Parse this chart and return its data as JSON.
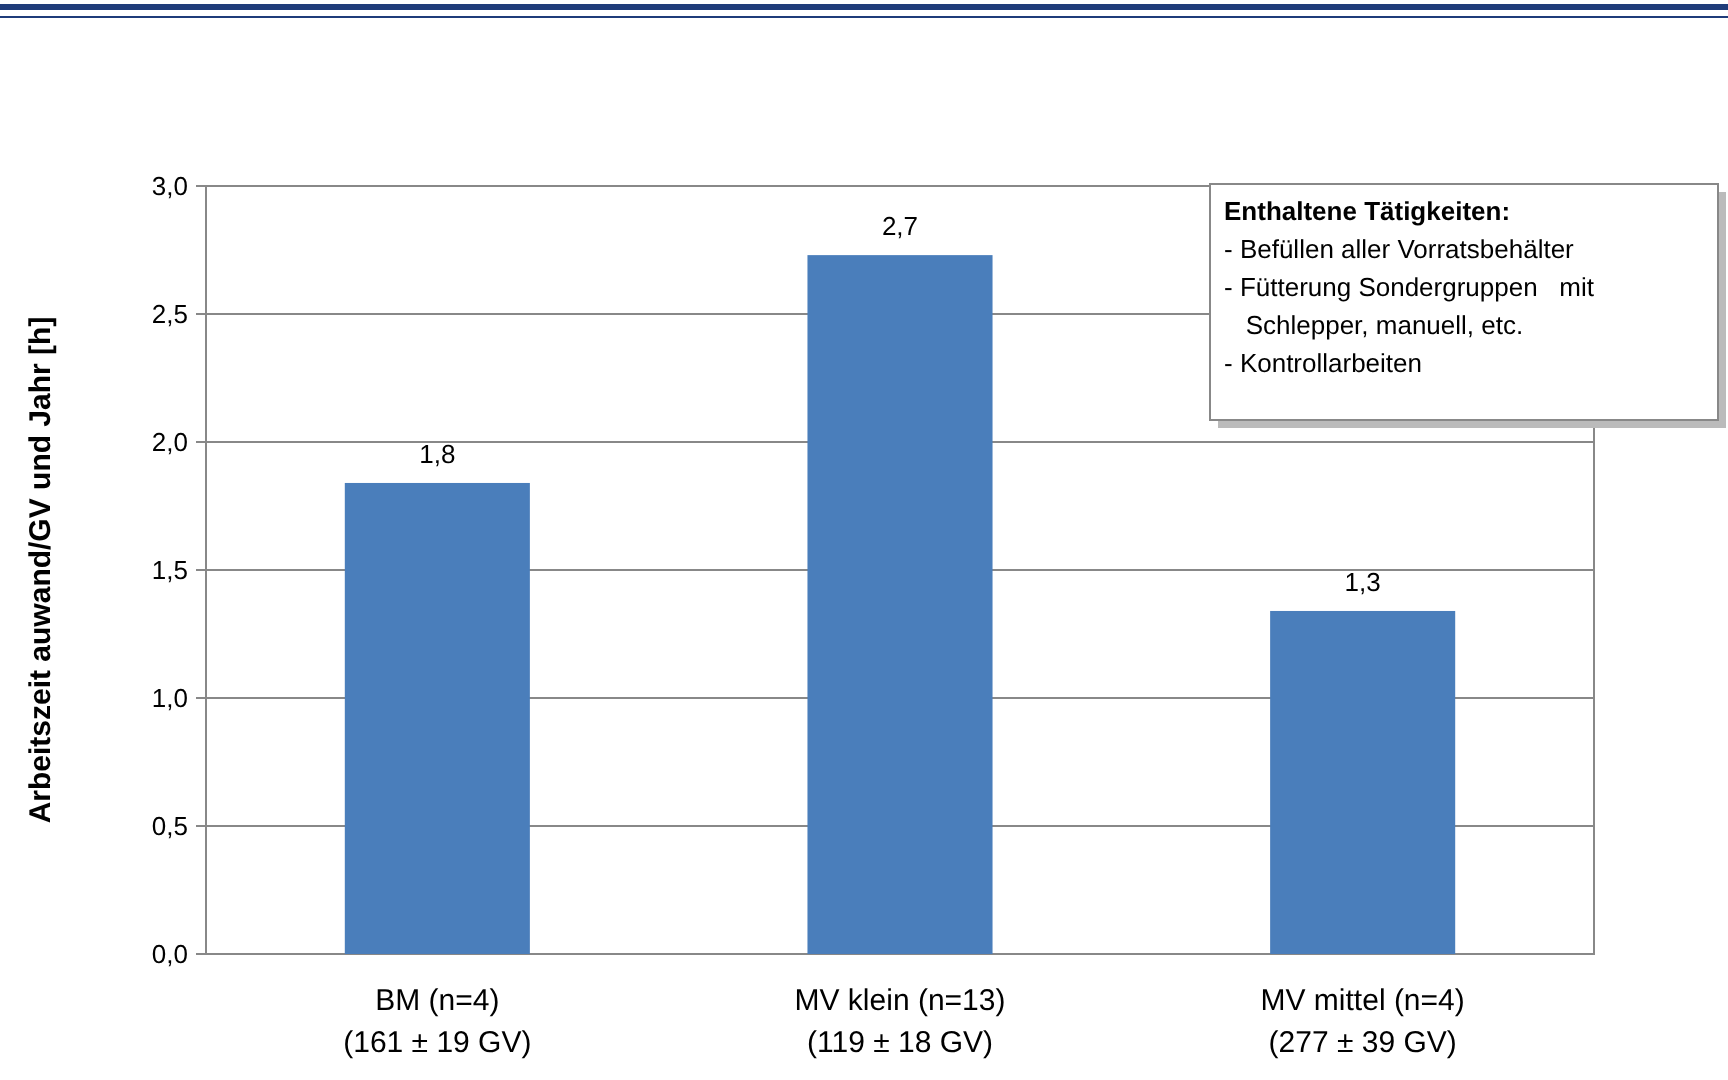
{
  "chart_data": {
    "type": "bar",
    "ylabel": "Arbeitszeit auwand/GV und Jahr [h]",
    "categories": [
      "BM (n=4)\n(161 ± 19 GV)",
      "MV klein (n=13)\n(119 ± 18 GV)",
      "MV mittel (n=4)\n(277 ± 39 GV)"
    ],
    "values": [
      1.84,
      2.73,
      1.34
    ],
    "value_labels": [
      "1,8",
      "2,7",
      "1,3"
    ],
    "color": "#4a7ebb",
    "ylim": [
      0,
      3
    ],
    "yticks": [
      {
        "value": 0,
        "label": "0,0"
      },
      {
        "value": 0.5,
        "label": "0,5"
      },
      {
        "value": 1,
        "label": "1,0"
      },
      {
        "value": 1.5,
        "label": "1,5"
      },
      {
        "value": 2,
        "label": "2,0"
      },
      {
        "value": 2.5,
        "label": "2,5"
      },
      {
        "value": 3,
        "label": "3,0"
      }
    ],
    "grid": "y",
    "annotations": [
      "Enthaltene Tätigkeiten:\n- Befüllen aller Vorratsbehälter\n- Fütterung Sondergruppen   mit\n   Schlepper, manuell, etc.\n- Kontrollarbeiten"
    ]
  }
}
